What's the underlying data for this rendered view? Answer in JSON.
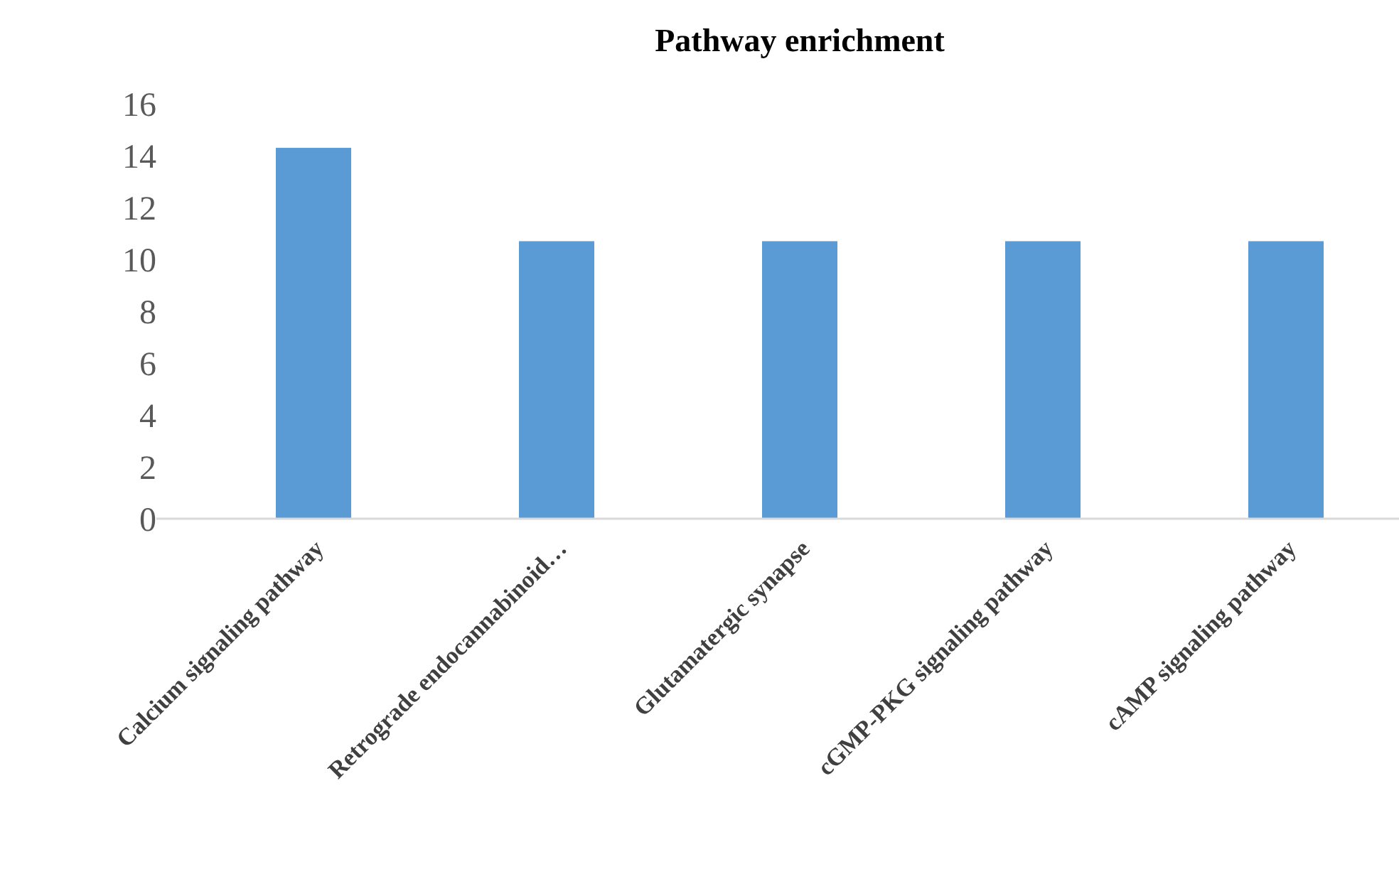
{
  "chart_data": {
    "type": "bar",
    "title": "Pathway enrichment",
    "categories": [
      "Calcium signaling pathway",
      "Retrograde endocannabinoid…",
      "Glutamatergic synapse",
      "cGMP-PKG signaling pathway",
      "cAMP signaling pathway"
    ],
    "values": [
      14.3,
      10.7,
      10.7,
      10.7,
      10.7
    ],
    "color": "#5b9bd5",
    "ylim": [
      0,
      16
    ],
    "yticks": [
      0,
      2,
      4,
      6,
      8,
      10,
      12,
      14,
      16
    ],
    "grid": false
  }
}
